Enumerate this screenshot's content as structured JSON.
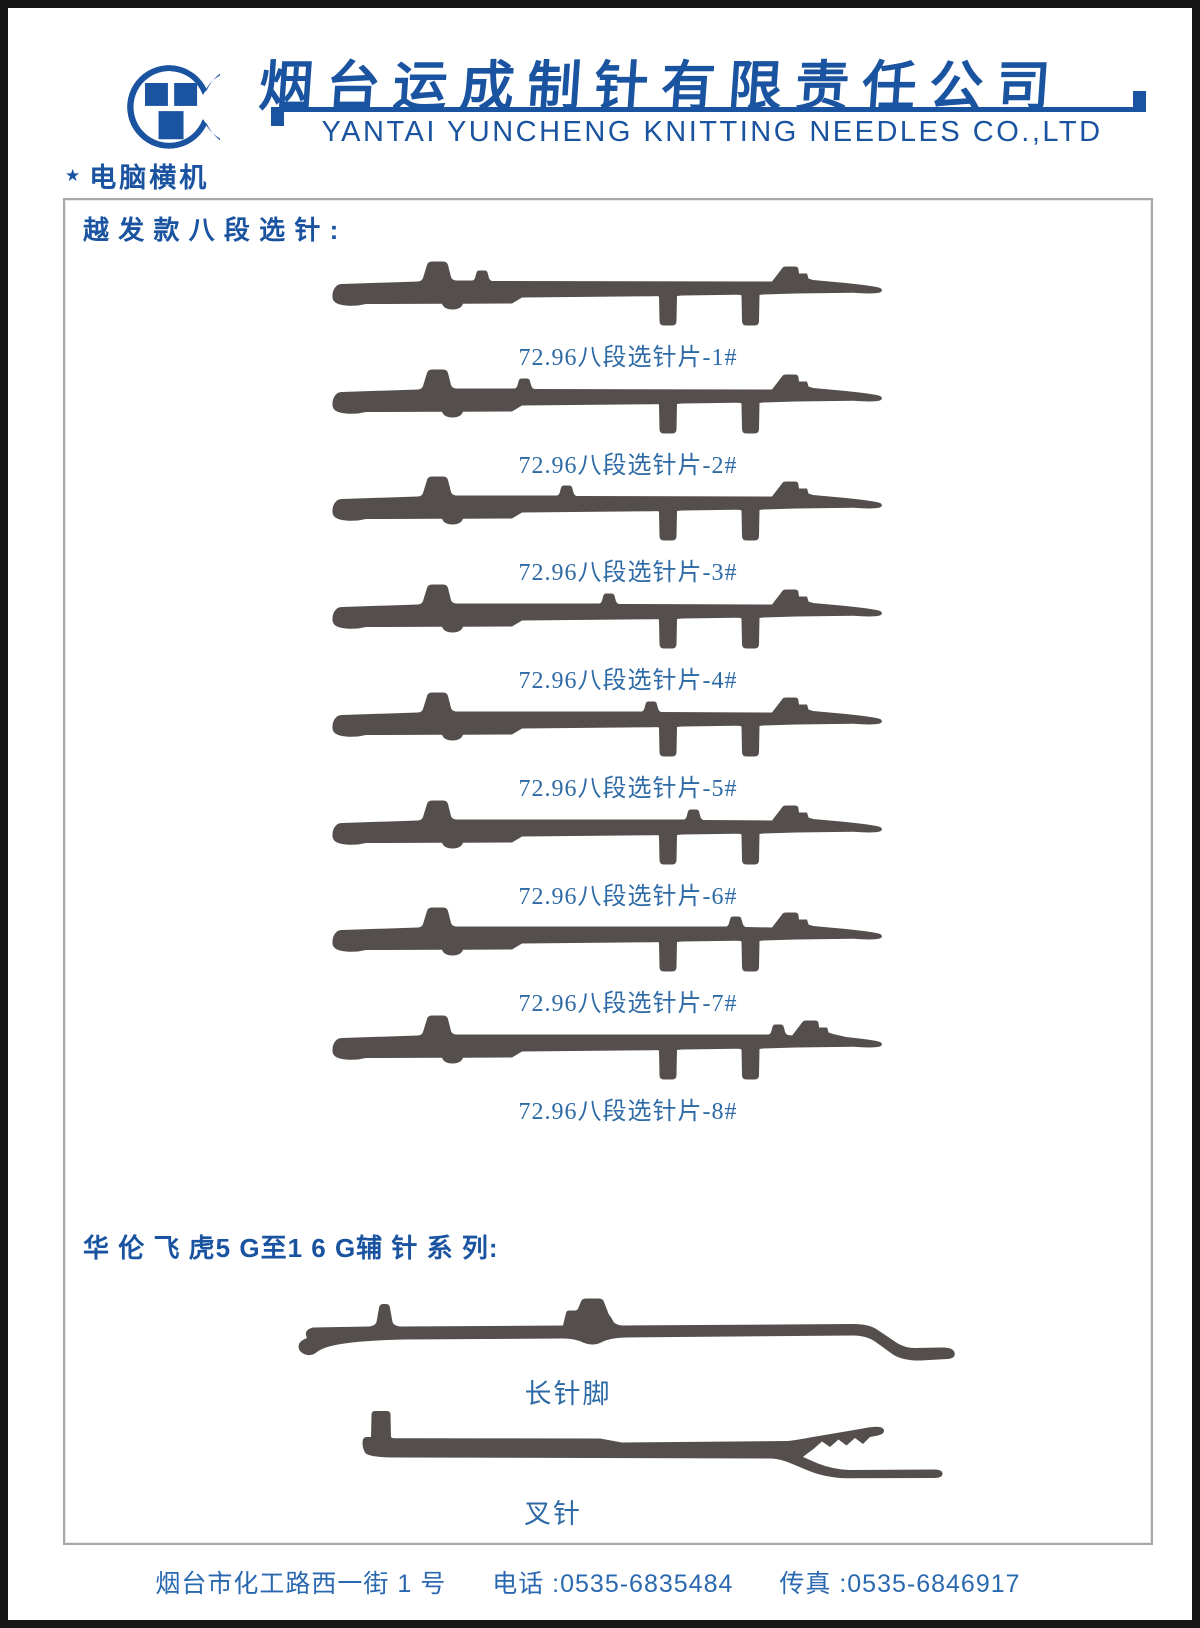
{
  "colors": {
    "brand": "#1a53a0",
    "caption": "#2e6aa5",
    "footer": "#2a69b0",
    "needle": "#544f4c",
    "border": "#a8a8a8",
    "frame": "#161616"
  },
  "header": {
    "company_cn": "烟台运成制针有限责任公司",
    "company_en": "YANTAI YUNCHENG KNITTING NEEDLES CO.,LTD",
    "star": "★",
    "tagline": "电脑横机"
  },
  "section1": {
    "title": "越 发 款 八 段 选 针 :",
    "needles": [
      {
        "label": "72.96八段选针片-1#",
        "segment": 1
      },
      {
        "label": "72.96八段选针片-2#",
        "segment": 2
      },
      {
        "label": "72.96八段选针片-3#",
        "segment": 3
      },
      {
        "label": "72.96八段选针片-4#",
        "segment": 4
      },
      {
        "label": "72.96八段选针片-5#",
        "segment": 5
      },
      {
        "label": "72.96八段选针片-6#",
        "segment": 6
      },
      {
        "label": "72.96八段选针片-7#",
        "segment": 7
      },
      {
        "label": "72.96八段选针片-8#",
        "segment": 8
      }
    ]
  },
  "section2": {
    "title": "华 伦 飞 虎5 G至1 6 G辅 针 系 列:",
    "items": [
      {
        "label": "长针脚",
        "shape": "long-foot"
      },
      {
        "label": "叉针",
        "shape": "fork"
      }
    ]
  },
  "footer": {
    "address": "烟台市化工路西一街 1 号",
    "phone": "电话 :0535-6835484",
    "fax": "传真 :0535-6846917"
  }
}
